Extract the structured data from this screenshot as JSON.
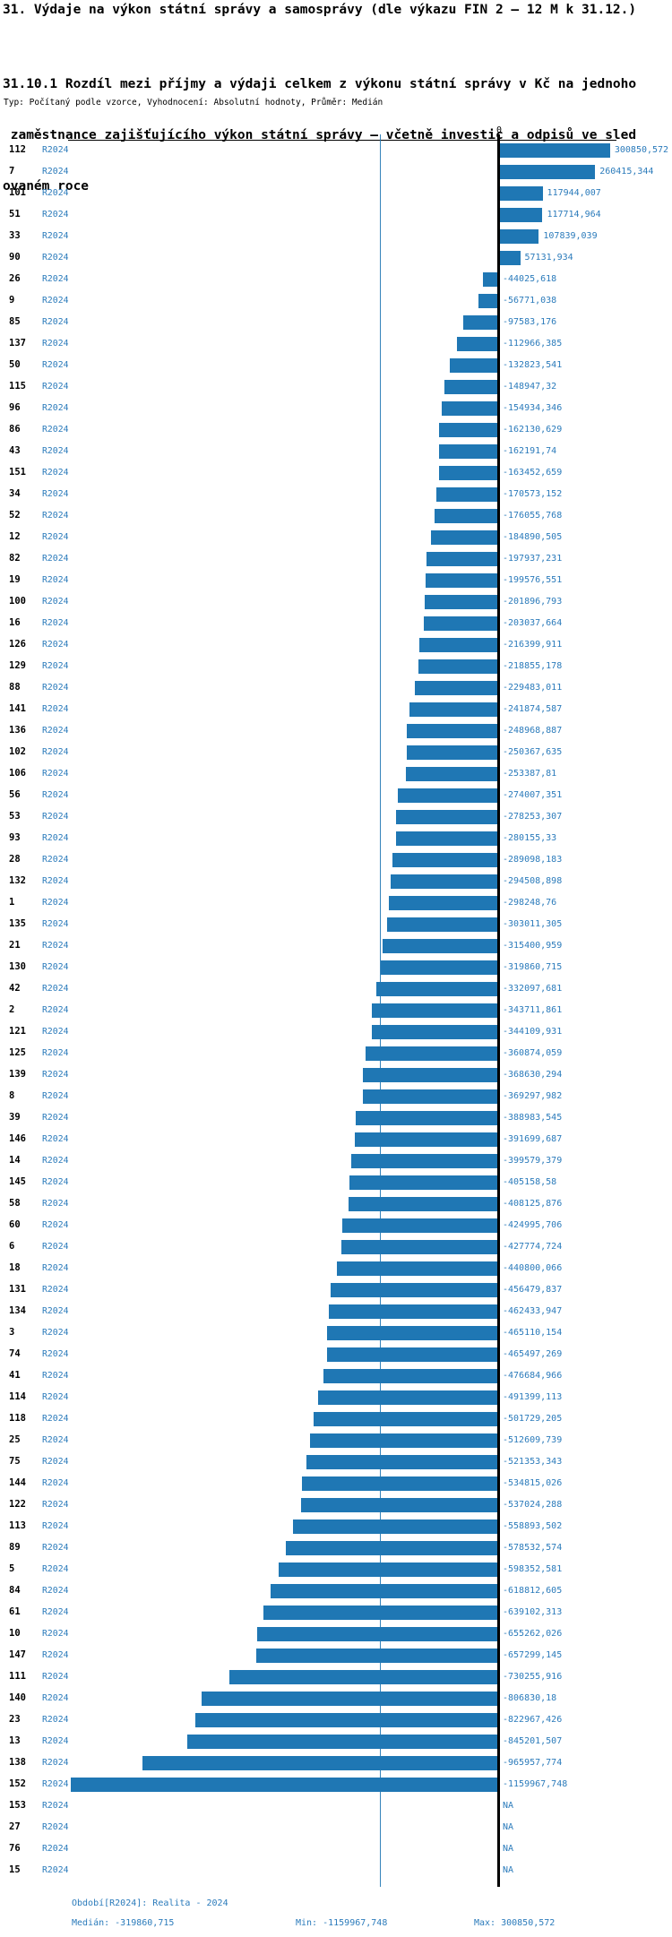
{
  "title": "31. Výdaje na výkon státní správy a samosprávy (dle výkazu FIN 2 – 12 M k 31.12.)",
  "subtitle_lines": {
    "0": "31.10.1 Rozdíl mezi příjmy a výdaji celkem z výkonu státní správy v Kč na jednoho",
    "1": " zaměstnance zajišťujícího výkon státní správy – včetně investic a odpisů ve sled",
    "2": "ovaném roce"
  },
  "meta_line": "Typ: Počítaný podle vzorce, Vyhodnocení: Absolutní hodnoty, Průměr: Medián",
  "axis": {
    "zero_label": "0"
  },
  "chart_data": {
    "type": "bar",
    "orientation": "horizontal",
    "title": "31.10.1 Rozdíl mezi příjmy a výdaji celkem z výkonu státní správy v Kč na jednoho zaměstnance zajišťujícího výkon státní správy – včetně investic a odpisů ve sledovaném roce",
    "period_label": "R2024",
    "xlabel": "",
    "ylabel": "",
    "x_axis": {
      "zero_tick": 0,
      "value_range": [
        -1200000,
        310000
      ],
      "gridlines": false
    },
    "median_reference_line": -319860.715,
    "bar_color": "#1f77b4",
    "median_line_color": "#1f77b4",
    "na_text": "NA",
    "categories": [
      "112",
      "7",
      "101",
      "51",
      "33",
      "90",
      "26",
      "9",
      "85",
      "137",
      "50",
      "115",
      "96",
      "86",
      "43",
      "151",
      "34",
      "52",
      "12",
      "82",
      "19",
      "100",
      "16",
      "126",
      "129",
      "88",
      "141",
      "136",
      "102",
      "106",
      "56",
      "53",
      "93",
      "28",
      "132",
      "1",
      "135",
      "21",
      "130",
      "42",
      "2",
      "121",
      "125",
      "139",
      "8",
      "39",
      "146",
      "14",
      "145",
      "58",
      "60",
      "6",
      "18",
      "131",
      "134",
      "3",
      "74",
      "41",
      "114",
      "118",
      "25",
      "75",
      "144",
      "122",
      "113",
      "89",
      "5",
      "84",
      "61",
      "10",
      "147",
      "111",
      "140",
      "23",
      "13",
      "138",
      "152",
      "153",
      "27",
      "76",
      "15"
    ],
    "values": [
      300850.572,
      260415.344,
      117944.007,
      117714.964,
      107839.039,
      57131.934,
      -44025.618,
      -56771.038,
      -97583.176,
      -112966.385,
      -132823.541,
      -148947.32,
      -154934.346,
      -162130.629,
      -162191.74,
      -163452.659,
      -170573.152,
      -176055.768,
      -184890.505,
      -197937.231,
      -199576.551,
      -201896.793,
      -203037.664,
      -216399.911,
      -218855.178,
      -229483.011,
      -241874.587,
      -248968.887,
      -250367.635,
      -253387.81,
      -274007.351,
      -278253.307,
      -280155.33,
      -289098.183,
      -294508.898,
      -298248.76,
      -303011.305,
      -315400.959,
      -319860.715,
      -332097.681,
      -343711.861,
      -344109.931,
      -360874.059,
      -368630.294,
      -369297.982,
      -388983.545,
      -391699.687,
      -399579.379,
      -405158.58,
      -408125.876,
      -424995.706,
      -427774.724,
      -440800.066,
      -456479.837,
      -462433.947,
      -465110.154,
      -465497.269,
      -476684.966,
      -491399.113,
      -501729.205,
      -512609.739,
      -521353.343,
      -534815.026,
      -537024.288,
      -558893.502,
      -578532.574,
      -598352.581,
      -618812.605,
      -639102.313,
      -655262.026,
      -657299.145,
      -730255.916,
      -806830.18,
      -822967.426,
      -845201.507,
      -965957.774,
      -1159967.748,
      null,
      null,
      null,
      null
    ],
    "value_labels": [
      "300850,572",
      "260415,344",
      "117944,007",
      "117714,964",
      "107839,039",
      "57131,934",
      "-44025,618",
      "-56771,038",
      "-97583,176",
      "-112966,385",
      "-132823,541",
      "-148947,32",
      "-154934,346",
      "-162130,629",
      "-162191,74",
      "-163452,659",
      "-170573,152",
      "-176055,768",
      "-184890,505",
      "-197937,231",
      "-199576,551",
      "-201896,793",
      "-203037,664",
      "-216399,911",
      "-218855,178",
      "-229483,011",
      "-241874,587",
      "-248968,887",
      "-250367,635",
      "-253387,81",
      "-274007,351",
      "-278253,307",
      "-280155,33",
      "-289098,183",
      "-294508,898",
      "-298248,76",
      "-303011,305",
      "-315400,959",
      "-319860,715",
      "-332097,681",
      "-343711,861",
      "-344109,931",
      "-360874,059",
      "-368630,294",
      "-369297,982",
      "-388983,545",
      "-391699,687",
      "-399579,379",
      "-405158,58",
      "-408125,876",
      "-424995,706",
      "-427774,724",
      "-440800,066",
      "-456479,837",
      "-462433,947",
      "-465110,154",
      "-465497,269",
      "-476684,966",
      "-491399,113",
      "-501729,205",
      "-512609,739",
      "-521353,343",
      "-534815,026",
      "-537024,288",
      "-558893,502",
      "-578532,574",
      "-598352,581",
      "-618812,605",
      "-639102,313",
      "-655262,026",
      "-657299,145",
      "-730255,916",
      "-806830,18",
      "-822967,426",
      "-845201,507",
      "-965957,774",
      "-1159967,748",
      "NA",
      "NA",
      "NA",
      "NA"
    ],
    "median": -319860.715,
    "min": -1159967.748,
    "max": 300850.572
  },
  "footer": {
    "period": "Období[R2024]: Realita - 2024",
    "median_label": "Medián: -319860,715",
    "min_label": "Min: -1159967,748",
    "max_label": "Max: 300850,572"
  }
}
